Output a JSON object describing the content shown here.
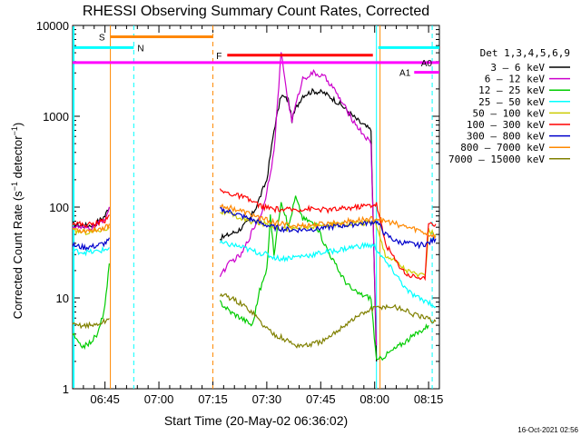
{
  "chart_data": {
    "type": "line",
    "title": "RHESSI Observing Summary Count Rates, Corrected",
    "xlabel": "Start Time (20-May-02 06:36:02)",
    "ylabel": "Corrected Count Rate (s⁻¹ detector⁻¹)",
    "ylabel_main": "Corrected Count Rate (s",
    "ylabel_sup1": "−1",
    "ylabel_mid": " detector",
    "ylabel_sup2": "−1",
    "ylabel_end": ")",
    "y_scale": "log",
    "ylim": [
      1,
      10000
    ],
    "xlim_minutes": [
      0,
      102
    ],
    "y_ticks": [
      {
        "value": 1,
        "label": "1"
      },
      {
        "value": 10,
        "label": "10"
      },
      {
        "value": 100,
        "label": "100"
      },
      {
        "value": 1000,
        "label": "1000"
      },
      {
        "value": 10000,
        "label": "10000"
      }
    ],
    "x_ticks": [
      {
        "minutes": 9,
        "label": "06:45"
      },
      {
        "minutes": 24,
        "label": "07:00"
      },
      {
        "minutes": 39,
        "label": "07:15"
      },
      {
        "minutes": 54,
        "label": "07:30"
      },
      {
        "minutes": 69,
        "label": "07:45"
      },
      {
        "minutes": 84,
        "label": "08:00"
      },
      {
        "minutes": 99,
        "label": "08:15"
      }
    ],
    "legend_title": "Det 1,3,4,5,6,9",
    "series": [
      {
        "name": "3 - 6 keV",
        "label": "3 – 6 keV",
        "color": "#000000",
        "points": [
          [
            0,
            65
          ],
          [
            3,
            62
          ],
          [
            6,
            64
          ],
          [
            9,
            80
          ],
          [
            10.5,
            110
          ],
          [
            41,
            45
          ],
          [
            46,
            55
          ],
          [
            49,
            70
          ],
          [
            51,
            100
          ],
          [
            54,
            200
          ],
          [
            56,
            700
          ],
          [
            58,
            1700
          ],
          [
            60,
            1500
          ],
          [
            61,
            900
          ],
          [
            62,
            1200
          ],
          [
            64,
            1700
          ],
          [
            67,
            1900
          ],
          [
            70,
            1800
          ],
          [
            72,
            1600
          ],
          [
            75,
            1300
          ],
          [
            78,
            1000
          ],
          [
            80,
            850
          ],
          [
            83,
            700
          ],
          [
            84.5,
            2
          ]
        ]
      },
      {
        "name": "6 - 12 keV",
        "label": "6 – 12 keV",
        "color": "#cc00cc",
        "points": [
          [
            0,
            62
          ],
          [
            3,
            58
          ],
          [
            6,
            60
          ],
          [
            9,
            75
          ],
          [
            10.5,
            100
          ],
          [
            41,
            18
          ],
          [
            44,
            25
          ],
          [
            47,
            30
          ],
          [
            50,
            55
          ],
          [
            53,
            95
          ],
          [
            56,
            400
          ],
          [
            58,
            5000
          ],
          [
            60,
            1400
          ],
          [
            61,
            900
          ],
          [
            62,
            1300
          ],
          [
            64,
            2600
          ],
          [
            67,
            3000
          ],
          [
            70,
            2700
          ],
          [
            72,
            2200
          ],
          [
            75,
            1400
          ],
          [
            78,
            900
          ],
          [
            80,
            700
          ],
          [
            83,
            500
          ],
          [
            84.5,
            3
          ]
        ]
      },
      {
        "name": "12 - 25 keV",
        "label": "12 – 25 keV",
        "color": "#00cc00",
        "points": [
          [
            0,
            4
          ],
          [
            2,
            3
          ],
          [
            4,
            3
          ],
          [
            7,
            4
          ],
          [
            9,
            8
          ],
          [
            10.5,
            30
          ],
          [
            41,
            9
          ],
          [
            44,
            7
          ],
          [
            47,
            6
          ],
          [
            50,
            5
          ],
          [
            52,
            12
          ],
          [
            54,
            20
          ],
          [
            55,
            80
          ],
          [
            56,
            30
          ],
          [
            57,
            60
          ],
          [
            58,
            120
          ],
          [
            60,
            60
          ],
          [
            62,
            130
          ],
          [
            64,
            75
          ],
          [
            66,
            70
          ],
          [
            68,
            60
          ],
          [
            70,
            40
          ],
          [
            72,
            28
          ],
          [
            74,
            20
          ],
          [
            76,
            15
          ],
          [
            78,
            12
          ],
          [
            80,
            11
          ],
          [
            83,
            10
          ],
          [
            84.5,
            2
          ],
          [
            99,
            5
          ]
        ]
      },
      {
        "name": "25 - 50 keV",
        "label": "25 – 50 keV",
        "color": "#00ffff",
        "points": [
          [
            0,
            33
          ],
          [
            3,
            32
          ],
          [
            6,
            32
          ],
          [
            9,
            34
          ],
          [
            10.5,
            36
          ],
          [
            41,
            40
          ],
          [
            45,
            38
          ],
          [
            48,
            35
          ],
          [
            51,
            32
          ],
          [
            54,
            30
          ],
          [
            56,
            28
          ],
          [
            58,
            27
          ],
          [
            61,
            28
          ],
          [
            64,
            29
          ],
          [
            67,
            30
          ],
          [
            70,
            32
          ],
          [
            73,
            33
          ],
          [
            76,
            35
          ],
          [
            79,
            37
          ],
          [
            82,
            38
          ],
          [
            84,
            37
          ],
          [
            87,
            25
          ],
          [
            90,
            18
          ],
          [
            93,
            12
          ],
          [
            96,
            10
          ],
          [
            99,
            9
          ],
          [
            101,
            8
          ]
        ]
      },
      {
        "name": "50 - 100 keV",
        "label": "50 – 100 keV",
        "color": "#cccc00",
        "points": [
          [
            0,
            55
          ],
          [
            3,
            53
          ],
          [
            6,
            54
          ],
          [
            9,
            58
          ],
          [
            10.5,
            60
          ],
          [
            41,
            90
          ],
          [
            45,
            80
          ],
          [
            48,
            72
          ],
          [
            51,
            68
          ],
          [
            54,
            65
          ],
          [
            57,
            60
          ],
          [
            60,
            58
          ],
          [
            63,
            59
          ],
          [
            66,
            60
          ],
          [
            69,
            62
          ],
          [
            72,
            64
          ],
          [
            75,
            65
          ],
          [
            78,
            66
          ],
          [
            81,
            67
          ],
          [
            84,
            70
          ],
          [
            87,
            30
          ],
          [
            90,
            25
          ],
          [
            93,
            20
          ],
          [
            96,
            18
          ],
          [
            98,
            17
          ],
          [
            99,
            55
          ],
          [
            101,
            50
          ]
        ]
      },
      {
        "name": "100 - 300 keV",
        "label": "100 – 300 keV",
        "color": "#ff0000",
        "points": [
          [
            0,
            68
          ],
          [
            3,
            64
          ],
          [
            6,
            65
          ],
          [
            9,
            72
          ],
          [
            10.5,
            90
          ],
          [
            41,
            150
          ],
          [
            44,
            140
          ],
          [
            47,
            130
          ],
          [
            50,
            115
          ],
          [
            53,
            100
          ],
          [
            56,
            95
          ],
          [
            59,
            93
          ],
          [
            62,
            94
          ],
          [
            65,
            96
          ],
          [
            68,
            95
          ],
          [
            71,
            93
          ],
          [
            74,
            95
          ],
          [
            77,
            98
          ],
          [
            80,
            102
          ],
          [
            83,
            105
          ],
          [
            84.5,
            108
          ],
          [
            87,
            40
          ],
          [
            90,
            25
          ],
          [
            93,
            18
          ],
          [
            96,
            17
          ],
          [
            98,
            16
          ],
          [
            99,
            70
          ],
          [
            101,
            65
          ]
        ]
      },
      {
        "name": "300 - 800 keV",
        "label": "300 – 800 keV",
        "color": "#0000cc",
        "points": [
          [
            0,
            38
          ],
          [
            3,
            36
          ],
          [
            6,
            37
          ],
          [
            9,
            40
          ],
          [
            10.5,
            44
          ],
          [
            41,
            95
          ],
          [
            44,
            88
          ],
          [
            47,
            80
          ],
          [
            50,
            72
          ],
          [
            53,
            65
          ],
          [
            56,
            60
          ],
          [
            59,
            57
          ],
          [
            62,
            56
          ],
          [
            65,
            57
          ],
          [
            68,
            58
          ],
          [
            71,
            60
          ],
          [
            74,
            62
          ],
          [
            77,
            64
          ],
          [
            80,
            66
          ],
          [
            83,
            68
          ],
          [
            84.5,
            70
          ],
          [
            87,
            50
          ],
          [
            90,
            42
          ],
          [
            93,
            40
          ],
          [
            96,
            38
          ],
          [
            99,
            40
          ],
          [
            101,
            45
          ]
        ]
      },
      {
        "name": "800 - 7000 keV",
        "label": "800 – 7000 keV",
        "color": "#ff8800",
        "points": [
          [
            0,
            58
          ],
          [
            3,
            55
          ],
          [
            6,
            56
          ],
          [
            9,
            60
          ],
          [
            10.5,
            64
          ],
          [
            41,
            105
          ],
          [
            44,
            98
          ],
          [
            47,
            90
          ],
          [
            50,
            82
          ],
          [
            53,
            74
          ],
          [
            56,
            68
          ],
          [
            59,
            64
          ],
          [
            62,
            62
          ],
          [
            65,
            63
          ],
          [
            68,
            64
          ],
          [
            71,
            66
          ],
          [
            74,
            68
          ],
          [
            77,
            70
          ],
          [
            80,
            72
          ],
          [
            83,
            74
          ],
          [
            84.5,
            75
          ],
          [
            87,
            70
          ],
          [
            90,
            65
          ],
          [
            93,
            60
          ],
          [
            96,
            56
          ],
          [
            99,
            50
          ],
          [
            101,
            48
          ]
        ]
      },
      {
        "name": "7000 - 15000 keV",
        "label": "7000 – 15000 keV",
        "color": "#808000",
        "points": [
          [
            0,
            5
          ],
          [
            3,
            5
          ],
          [
            6,
            5
          ],
          [
            9,
            5.5
          ],
          [
            10.5,
            6
          ],
          [
            41,
            11
          ],
          [
            44,
            10
          ],
          [
            47,
            8.5
          ],
          [
            50,
            7
          ],
          [
            53,
            5
          ],
          [
            56,
            4
          ],
          [
            59,
            3.5
          ],
          [
            62,
            3
          ],
          [
            65,
            3
          ],
          [
            68,
            3.2
          ],
          [
            71,
            3.5
          ],
          [
            74,
            4.5
          ],
          [
            77,
            5.5
          ],
          [
            80,
            6.5
          ],
          [
            83,
            7.5
          ],
          [
            86,
            8
          ],
          [
            89,
            8
          ],
          [
            92,
            7.5
          ],
          [
            95,
            6.5
          ],
          [
            98,
            6
          ],
          [
            101,
            5.5
          ]
        ]
      }
    ],
    "flag_lines": [
      {
        "label": "S",
        "color": "#ff8800",
        "start_minutes": 10.5,
        "end_minutes": 39,
        "level": 7500
      },
      {
        "label": "N",
        "color": "#00ffff",
        "start_minutes": 0,
        "end_minutes": 17,
        "level": 5700
      },
      {
        "label": "F",
        "color": "#ff0000",
        "start_minutes": 43,
        "end_minutes": 83.5,
        "level": 4700
      },
      {
        "label": "A0",
        "color": "#ff00ff",
        "start_minutes": 0,
        "end_minutes": 102,
        "level": 3900
      },
      {
        "label": "A1",
        "color": "#ff00ff",
        "start_minutes": 95,
        "end_minutes": 102,
        "level": 3050
      },
      {
        "label": "",
        "color": "#00ffff",
        "start_minutes": 85,
        "end_minutes": 102,
        "level": 5700
      }
    ],
    "vertical_markers": [
      {
        "minutes": 10.5,
        "color": "#ff8800",
        "dashed": false
      },
      {
        "minutes": 17,
        "color": "#00ffff",
        "dashed": true
      },
      {
        "minutes": 39,
        "color": "#ff8800",
        "dashed": true
      },
      {
        "minutes": 84.5,
        "color": "#00ffff",
        "dashed": false
      },
      {
        "minutes": 85.5,
        "color": "#ff8800",
        "dashed": false
      },
      {
        "minutes": 100,
        "color": "#00ffff",
        "dashed": true
      }
    ],
    "left_cyan_marker": {
      "color": "#00ffff"
    },
    "grid": false,
    "legend_position": "outside-right"
  },
  "footer": {
    "timestamp": "16-Oct-2021 02:56"
  }
}
